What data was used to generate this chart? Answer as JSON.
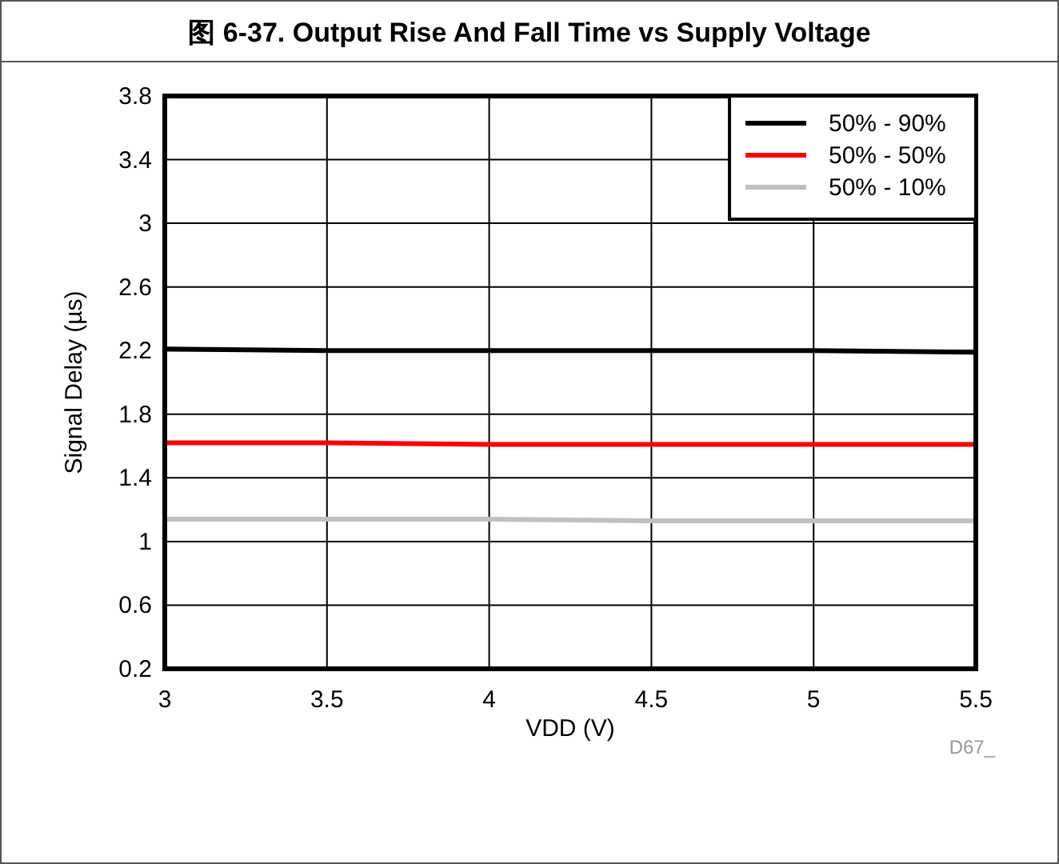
{
  "chart_data": {
    "type": "line",
    "title": "图 6-37. Output Rise And Fall Time vs Supply Voltage",
    "xlabel": "VDD (V)",
    "ylabel": "Signal Delay (µs)",
    "x": [
      3,
      3.5,
      4,
      4.5,
      5,
      5.5
    ],
    "series": [
      {
        "name": "50% - 90%",
        "color": "#000000",
        "values": [
          2.21,
          2.2,
          2.2,
          2.2,
          2.2,
          2.19
        ]
      },
      {
        "name": "50% - 50%",
        "color": "#ff0000",
        "values": [
          1.62,
          1.62,
          1.61,
          1.61,
          1.61,
          1.61
        ]
      },
      {
        "name": "50% - 10%",
        "color": "#c0c0c0",
        "values": [
          1.14,
          1.14,
          1.14,
          1.13,
          1.13,
          1.13
        ]
      }
    ],
    "xlim": [
      3,
      5.5
    ],
    "ylim": [
      0.2,
      3.8
    ],
    "xticks": [
      3,
      3.5,
      4,
      4.5,
      5,
      5.5
    ],
    "yticks": [
      0.2,
      0.6,
      1,
      1.4,
      1.8,
      2.2,
      2.6,
      3,
      3.4,
      3.8
    ],
    "grid": true,
    "legend": "top right",
    "line_style": "solid",
    "annotations": [
      "D67_"
    ]
  }
}
